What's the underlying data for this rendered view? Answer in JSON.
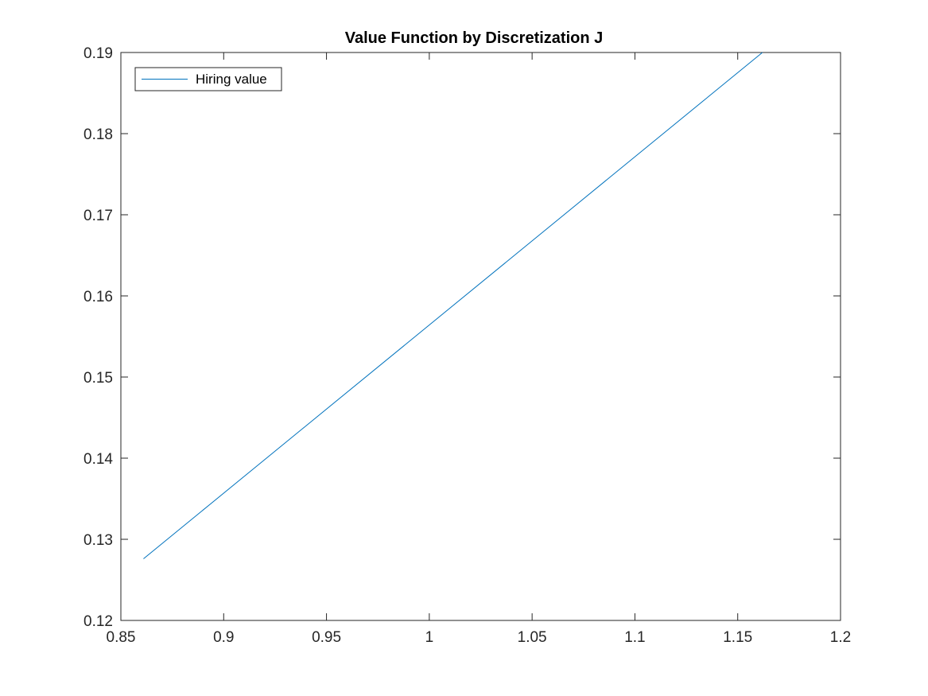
{
  "chart_data": {
    "type": "line",
    "title": "Value Function by Discretization J",
    "xlabel": "",
    "ylabel": "",
    "xlim": [
      0.85,
      1.2
    ],
    "ylim": [
      0.12,
      0.19
    ],
    "xticks": [
      0.85,
      0.9,
      0.95,
      1,
      1.05,
      1.1,
      1.15,
      1.2
    ],
    "xtick_labels": [
      "0.85",
      "0.9",
      "0.95",
      "1",
      "1.05",
      "1.1",
      "1.15",
      "1.2"
    ],
    "yticks": [
      0.12,
      0.13,
      0.14,
      0.15,
      0.16,
      0.17,
      0.18,
      0.19
    ],
    "ytick_labels": [
      "0.12",
      "0.13",
      "0.14",
      "0.15",
      "0.16",
      "0.17",
      "0.18",
      "0.19"
    ],
    "grid": false,
    "legend": "top-left",
    "series": [
      {
        "name": "Hiring value",
        "color": "#0072BD",
        "x": [
          0.861,
          1.162
        ],
        "y": [
          0.1276,
          0.19
        ]
      }
    ]
  }
}
